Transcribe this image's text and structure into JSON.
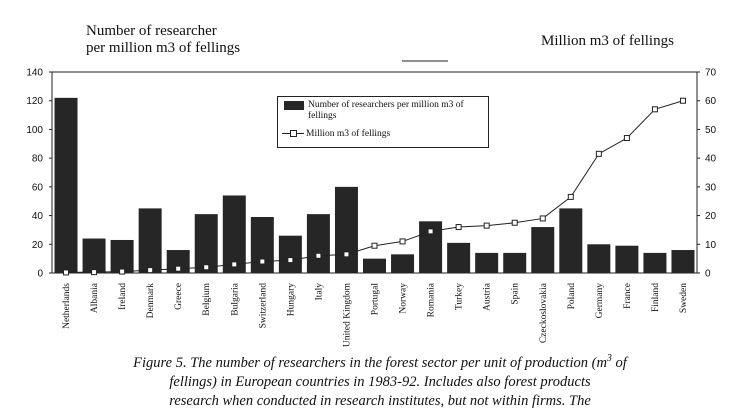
{
  "titles": {
    "left_line1": "Number of researcher",
    "left_line2": "per million m3 of fellings",
    "right": "Million m3 of fellings"
  },
  "legend": {
    "bar_label": "Number of researchers per million m3 of fellings",
    "line_label": "Million m3 of fellings"
  },
  "caption": {
    "line1_pre": "Figure 5. The number of researchers in the forest sector per unit of production (m",
    "line1_sup": "3",
    "line1_post": " of",
    "line2": "fellings) in European countries in 1983-92. Includes also forest products",
    "line3": "research when conducted in research institutes, but not within firms. The"
  },
  "chart_data": {
    "type": "bar",
    "categories": [
      "Netherlands",
      "Albania",
      "Ireland",
      "Denmark",
      "Greece",
      "Belgium",
      "Bulgaria",
      "Switzerland",
      "Hungary",
      "Italy",
      "United Kingdom",
      "Portugal",
      "Norway",
      "Romania",
      "Turkey",
      "Austria",
      "Spain",
      "Czeckoslovakia",
      "Poland",
      "Germany",
      "France",
      "Finland",
      "Sweden"
    ],
    "series": [
      {
        "name": "Number of researchers per million m3 of fellings",
        "axis": "left",
        "type": "bar",
        "values": [
          122,
          24,
          23,
          45,
          16,
          41,
          54,
          39,
          26,
          41,
          60,
          10,
          13,
          36,
          21,
          14,
          14,
          32,
          45,
          20,
          19,
          14,
          16
        ]
      },
      {
        "name": "Million m3 of fellings",
        "axis": "right",
        "type": "line",
        "values": [
          0.2,
          0.3,
          0.5,
          1.0,
          1.5,
          2.0,
          3.0,
          4.0,
          4.5,
          6.0,
          6.5,
          9.5,
          11.0,
          14.5,
          16.0,
          16.5,
          17.5,
          19.0,
          26.5,
          41.5,
          47.0,
          57.0,
          60.0
        ]
      }
    ],
    "y_left": {
      "min": 0,
      "max": 140,
      "ticks": [
        0,
        20,
        40,
        60,
        80,
        100,
        120,
        140
      ]
    },
    "y_right": {
      "min": 0,
      "max": 70,
      "ticks": [
        0,
        10,
        20,
        30,
        40,
        50,
        60,
        70
      ]
    },
    "grid": false,
    "legend_position": "top-center"
  }
}
